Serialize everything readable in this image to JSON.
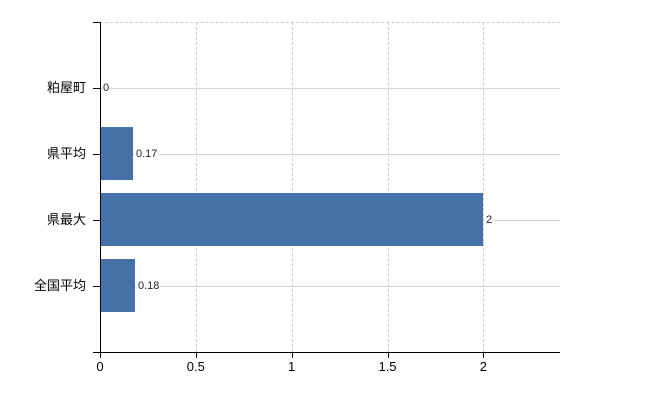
{
  "chart_data": {
    "type": "bar",
    "orientation": "horizontal",
    "title": "",
    "xlabel": "",
    "ylabel": "",
    "categories": [
      "粕屋町",
      "県平均",
      "県最大",
      "全国平均"
    ],
    "values": [
      0,
      0.17,
      2,
      0.18
    ],
    "data_labels": [
      "0",
      "0.17",
      "2",
      "0.18"
    ],
    "x_tick_values": [
      0,
      0.5,
      1,
      1.5,
      2
    ],
    "x_tick_labels": [
      "0",
      "0.5",
      "1",
      "1.5",
      "2"
    ],
    "xlim": [
      0,
      2.4
    ],
    "legend": "none",
    "grid": {
      "vertical_gridlines": "dashed",
      "horizontal_category_lines": "solid",
      "plot_top_border": "dashed"
    },
    "colors": {
      "bar": "#4472a8",
      "axis": "#000000",
      "vertical_gridline": "#cccccc",
      "category_line": "#d6d6d6",
      "label_text": "#222222",
      "tick_text": "#000000",
      "background": "#ffffff"
    }
  }
}
